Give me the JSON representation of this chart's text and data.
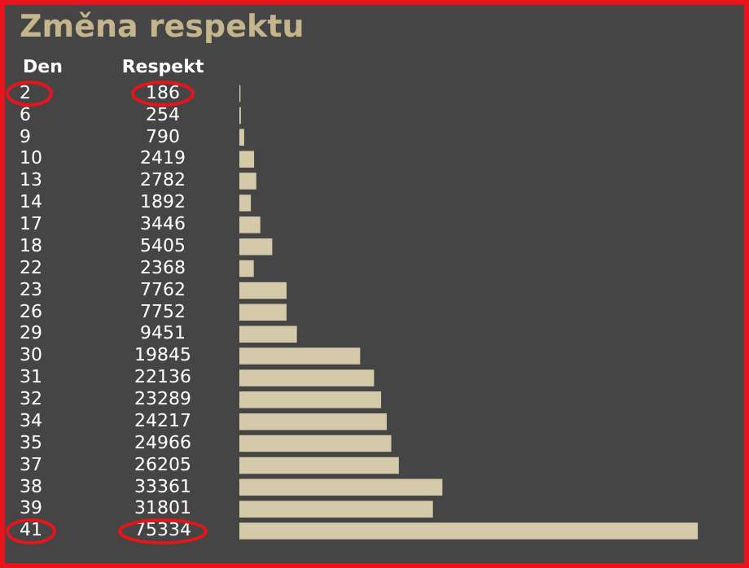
{
  "chart_data": {
    "type": "bar",
    "orientation": "horizontal",
    "title": "Změna respektu",
    "ylabel": "Den",
    "xlabel": "Respekt",
    "categories": [
      "2",
      "6",
      "9",
      "10",
      "13",
      "14",
      "17",
      "18",
      "22",
      "23",
      "26",
      "29",
      "30",
      "31",
      "32",
      "34",
      "35",
      "37",
      "38",
      "39",
      "41"
    ],
    "values": [
      186,
      254,
      790,
      2419,
      2782,
      1892,
      3446,
      5405,
      2368,
      7762,
      7752,
      9451,
      19845,
      22136,
      23289,
      24217,
      24966,
      26205,
      33361,
      31801,
      75334
    ],
    "color": "#d4c9a8",
    "data_labels": true,
    "legend": false
  }
}
